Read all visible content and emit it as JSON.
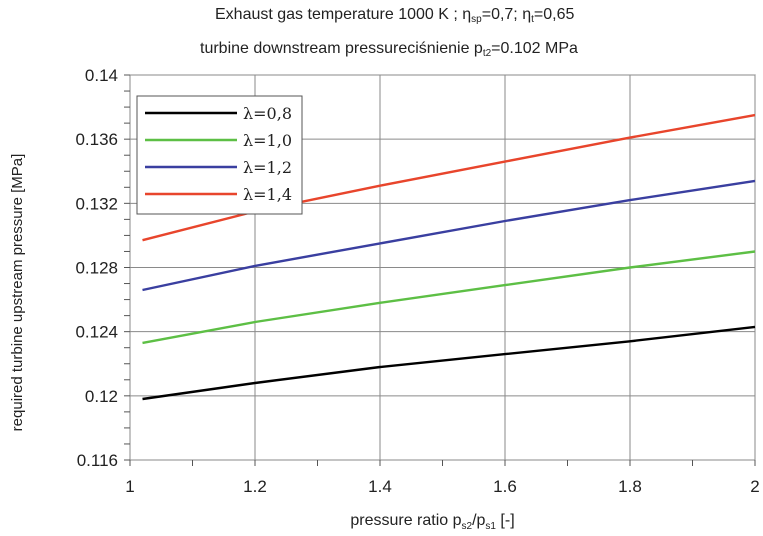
{
  "chart_data": {
    "type": "line",
    "title_line1": {
      "pre": "Exhaust gas temperature 1000 K ; η",
      "sub1": "sp",
      "mid": "=0,7; η",
      "sub2": "t",
      "post": "=0,65"
    },
    "title_line2": {
      "pre": "turbine downstream pressureciśnienie p",
      "sub": "t2",
      "post": "=0.102 MPa"
    },
    "xlabel": {
      "pre": "pressure ratio p",
      "sub1": "s2",
      "mid": "/p",
      "sub2": "s1",
      "post": "  [-]"
    },
    "ylabel": "required turbine upstream pressure [MPa]",
    "xlim": [
      1,
      2
    ],
    "ylim": [
      0.116,
      0.14
    ],
    "x_ticks": [
      1,
      1.2,
      1.4,
      1.6,
      1.8,
      2
    ],
    "x_tick_labels": [
      "1",
      "1.2",
      "1.4",
      "1.6",
      "1.8",
      "2"
    ],
    "y_ticks": [
      0.116,
      0.12,
      0.124,
      0.128,
      0.132,
      0.136,
      0.14
    ],
    "y_tick_labels": [
      "0.116",
      "0.12",
      "0.124",
      "0.128",
      "0.132",
      "0.136",
      "0.14"
    ],
    "grid": true,
    "legend_position": "top-left",
    "series": [
      {
        "name": "λ=0,8",
        "color": "#000000",
        "x": [
          1.02,
          1.2,
          1.4,
          1.6,
          1.8,
          2.0
        ],
        "y": [
          0.1198,
          0.1208,
          0.1218,
          0.1226,
          0.1234,
          0.1243
        ]
      },
      {
        "name": "λ=1,0",
        "color": "#5dbf45",
        "x": [
          1.02,
          1.2,
          1.4,
          1.6,
          1.8,
          2.0
        ],
        "y": [
          0.1233,
          0.1246,
          0.1258,
          0.1269,
          0.128,
          0.129
        ]
      },
      {
        "name": "λ=1,2",
        "color": "#3a3fa0",
        "x": [
          1.02,
          1.2,
          1.4,
          1.6,
          1.8,
          2.0
        ],
        "y": [
          0.1266,
          0.1281,
          0.1295,
          0.1309,
          0.1322,
          0.1334
        ]
      },
      {
        "name": "λ=1,4",
        "color": "#e8452c",
        "x": [
          1.02,
          1.2,
          1.4,
          1.6,
          1.8,
          2.0
        ],
        "y": [
          0.1297,
          0.1315,
          0.1331,
          0.1346,
          0.1361,
          0.1375
        ]
      }
    ]
  }
}
